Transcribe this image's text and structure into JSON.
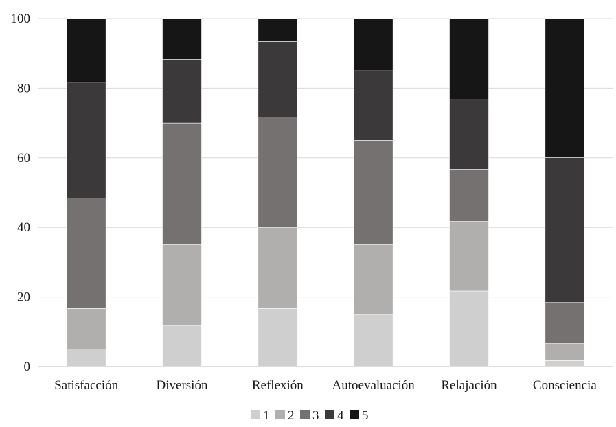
{
  "chart_data": {
    "type": "bar",
    "stacked": true,
    "title": "",
    "xlabel": "",
    "ylabel": "",
    "ylim": [
      0,
      100
    ],
    "yticks": [
      0,
      20,
      40,
      60,
      80,
      100
    ],
    "grid": true,
    "legend_position": "bottom",
    "categories": [
      "Satisfacción",
      "Diversión",
      "Reflexión",
      "Autoevaluación",
      "Relajación",
      "Consciencia"
    ],
    "series": [
      {
        "name": "1",
        "color": "#d0cfcf",
        "values": [
          5,
          11.7,
          16.7,
          15,
          21.7,
          1.7
        ]
      },
      {
        "name": "2",
        "color": "#b1aeae",
        "values": [
          11.7,
          23.3,
          23.3,
          20,
          20,
          5
        ]
      },
      {
        "name": "3",
        "color": "#757170",
        "values": [
          31.7,
          35,
          31.7,
          30,
          15,
          11.7
        ]
      },
      {
        "name": "4",
        "color": "#3b3939",
        "values": [
          33.3,
          18.3,
          21.7,
          20,
          20,
          41.7
        ]
      },
      {
        "name": "5",
        "color": "#171616",
        "values": [
          18.3,
          11.7,
          6.6,
          15,
          23.3,
          39.9
        ]
      }
    ]
  }
}
